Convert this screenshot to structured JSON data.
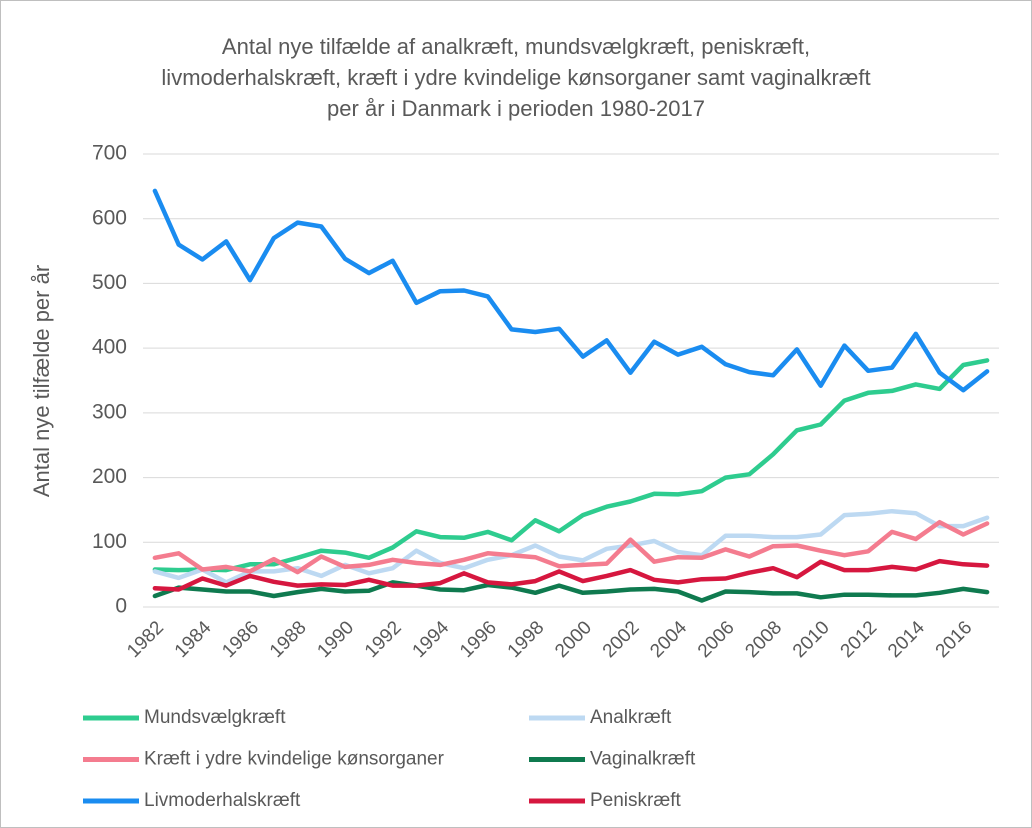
{
  "chart_data": {
    "type": "line",
    "title": "Antal nye tilfælde af analkræft, mundsvælgkræft, peniskræft, livmoderhalskræft, kræft i ydre kvindelige kønsorganer samt vaginalkræft per år i Danmark i perioden 1980-2017",
    "ylabel": "Antal nye tilfælde per år",
    "categories": [
      "1982",
      null,
      "1984",
      null,
      "1986",
      null,
      "1988",
      null,
      "1990",
      null,
      "1992",
      null,
      "1994",
      null,
      "1996",
      null,
      "1998",
      null,
      "2000",
      null,
      "2002",
      null,
      "2004",
      null,
      "2006",
      null,
      "2008",
      null,
      "2010",
      null,
      "2012",
      null,
      "2014",
      null,
      "2016",
      null
    ],
    "ylim": [
      0,
      700
    ],
    "yticks": [
      0,
      100,
      200,
      300,
      400,
      500,
      600,
      700
    ],
    "grid": true,
    "legend": "bottom",
    "series": [
      {
        "name": "Mundsvælgkræft",
        "color": "#2ecc8f",
        "values": [
          58,
          57,
          58,
          57,
          66,
          66,
          76,
          87,
          84,
          76,
          92,
          117,
          108,
          107,
          116,
          103,
          134,
          117,
          142,
          155,
          163,
          175,
          174,
          179,
          200,
          205,
          236,
          273,
          282,
          319,
          331,
          334,
          344,
          337,
          374,
          381
        ]
      },
      {
        "name": "Analkræft",
        "color": "#bdd9f2",
        "values": [
          55,
          45,
          58,
          38,
          55,
          55,
          60,
          48,
          65,
          52,
          60,
          87,
          68,
          60,
          73,
          80,
          95,
          78,
          72,
          90,
          95,
          102,
          85,
          80,
          110,
          110,
          108,
          108,
          112,
          142,
          144,
          148,
          145,
          125,
          125,
          138
        ]
      },
      {
        "name": "Kræft i ydre kvindelige kønsorganer",
        "color": "#f47c8f",
        "values": [
          76,
          83,
          58,
          62,
          55,
          74,
          54,
          78,
          62,
          65,
          73,
          68,
          65,
          73,
          83,
          80,
          77,
          63,
          65,
          67,
          104,
          70,
          77,
          76,
          89,
          78,
          94,
          95,
          87,
          80,
          86,
          116,
          105,
          131,
          112,
          129
        ]
      },
      {
        "name": "Vaginalkræft",
        "color": "#0f7a4f",
        "values": [
          17,
          30,
          27,
          24,
          24,
          17,
          23,
          28,
          24,
          25,
          38,
          33,
          27,
          26,
          34,
          30,
          22,
          33,
          22,
          24,
          27,
          28,
          24,
          10,
          24,
          23,
          21,
          21,
          15,
          19,
          19,
          18,
          18,
          22,
          28,
          23
        ]
      },
      {
        "name": "Livmoderhalskræft",
        "color": "#1a8cf0",
        "values": [
          643,
          560,
          537,
          565,
          505,
          570,
          594,
          588,
          538,
          516,
          535,
          470,
          488,
          489,
          480,
          429,
          425,
          430,
          387,
          412,
          362,
          410,
          390,
          402,
          375,
          363,
          358,
          398,
          342,
          404,
          365,
          370,
          422,
          362,
          335,
          364
        ]
      },
      {
        "name": "Peniskræft",
        "color": "#d6173f",
        "values": [
          29,
          27,
          44,
          33,
          48,
          39,
          33,
          35,
          34,
          42,
          33,
          33,
          37,
          52,
          38,
          35,
          40,
          55,
          40,
          48,
          57,
          42,
          38,
          43,
          44,
          53,
          60,
          46,
          70,
          57,
          57,
          62,
          58,
          71,
          66,
          64
        ]
      }
    ]
  }
}
